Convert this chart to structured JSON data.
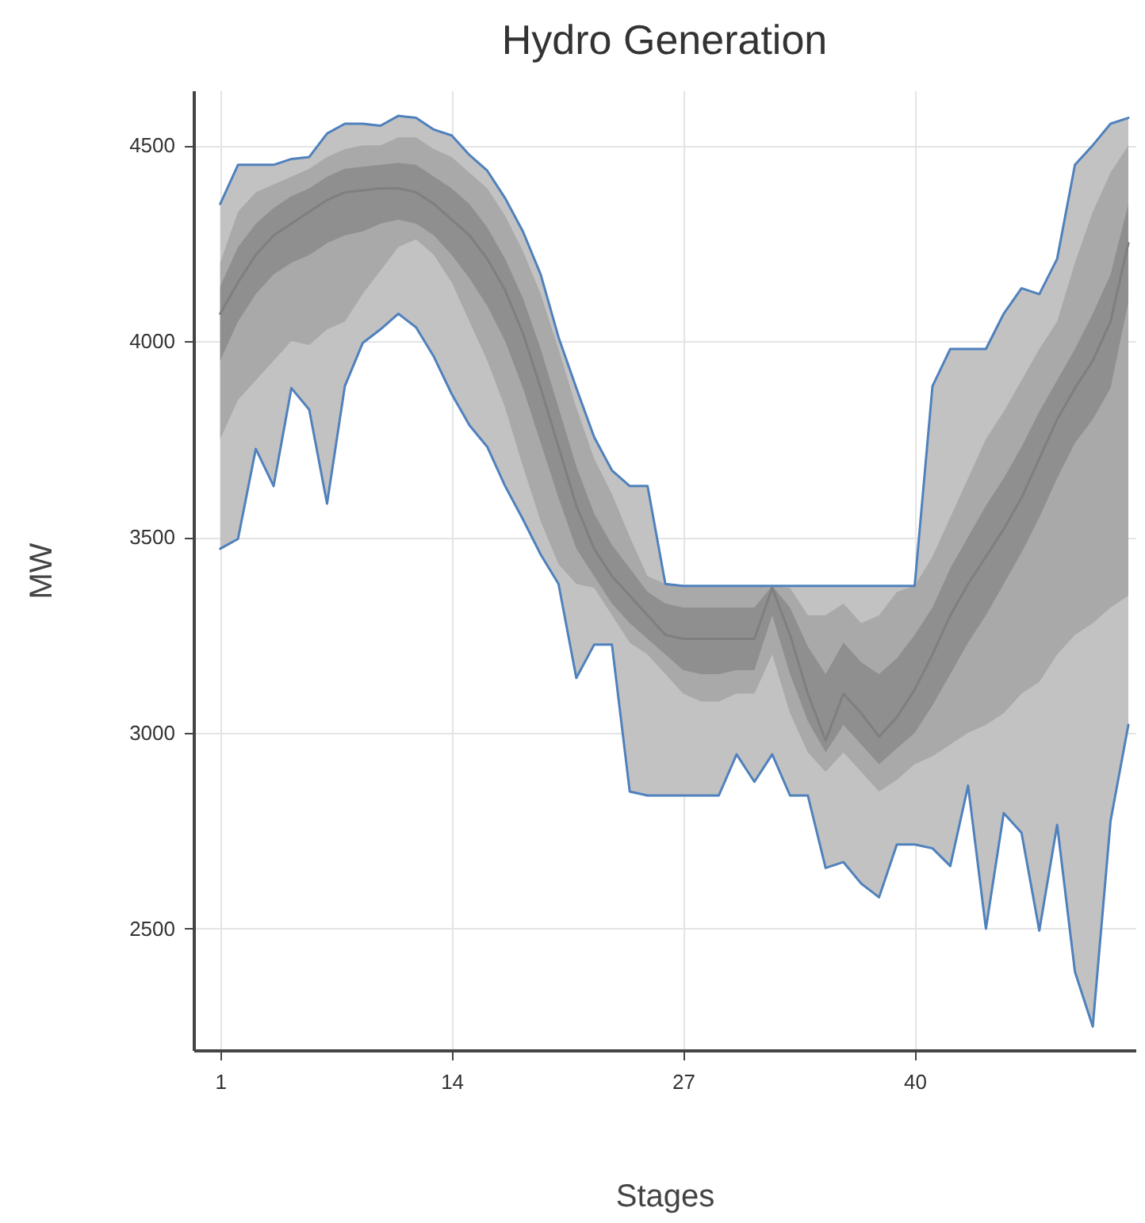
{
  "chart_data": {
    "type": "line",
    "title": "Hydro Generation",
    "xlabel": "Stages",
    "ylabel": "MW",
    "x": [
      1,
      2,
      3,
      4,
      5,
      6,
      7,
      8,
      9,
      10,
      11,
      12,
      13,
      14,
      15,
      16,
      17,
      18,
      19,
      20,
      21,
      22,
      23,
      24,
      25,
      26,
      27,
      28,
      29,
      30,
      31,
      32,
      33,
      34,
      35,
      36,
      37,
      38,
      39,
      40,
      41,
      42,
      43,
      44,
      45,
      46,
      47,
      48,
      49,
      50,
      51,
      52
    ],
    "xlim": [
      -0.5,
      52.4
    ],
    "xticks": [
      1,
      14,
      27,
      40
    ],
    "ylim": [
      2190,
      4640
    ],
    "yticks": [
      2500,
      3000,
      3500,
      4000,
      4500
    ],
    "grid": true,
    "series": [
      {
        "type": "area",
        "color": "#c2c2c2",
        "values": [
          null,
          null,
          null,
          null,
          null,
          null,
          null,
          null,
          null,
          null,
          null,
          null,
          null,
          null,
          null,
          null,
          null,
          null,
          null,
          null,
          null,
          null,
          null,
          null,
          null,
          null,
          null,
          null,
          null,
          null,
          null,
          null,
          null,
          null,
          null,
          null,
          null,
          null,
          null,
          null,
          null,
          null,
          null,
          null,
          null,
          null,
          null,
          null,
          null,
          null,
          null,
          null
        ],
        "lower": [
          3470,
          3495,
          3725,
          3630,
          3880,
          3825,
          3585,
          3885,
          3995,
          4030,
          4070,
          4035,
          3960,
          3865,
          3785,
          3730,
          3630,
          3545,
          3455,
          3380,
          3140,
          3225,
          3225,
          2850,
          2840,
          2840,
          2840,
          2840,
          2840,
          2945,
          2875,
          2945,
          2840,
          2840,
          2655,
          2670,
          2615,
          2580,
          2715,
          2715,
          2705,
          2660,
          2865,
          2500,
          2795,
          2745,
          2495,
          2765,
          2390,
          2250,
          2775,
          3020
        ],
        "upper": [
          4350,
          4450,
          4450,
          4450,
          4465,
          4470,
          4530,
          4555,
          4555,
          4550,
          4575,
          4570,
          4540,
          4525,
          4475,
          4435,
          4365,
          4280,
          4170,
          4010,
          3880,
          3755,
          3670,
          3630,
          3630,
          3380,
          3375,
          3375,
          3375,
          3375,
          3375,
          3375,
          3375,
          3375,
          3375,
          3375,
          3375,
          3375,
          3375,
          3375,
          3885,
          3980,
          3980,
          3980,
          4070,
          4135,
          4120,
          4210,
          4450,
          4500,
          4555,
          4570
        ]
      },
      {
        "type": "area",
        "color": "#a9a9a9",
        "values": [
          null,
          null,
          null,
          null,
          null,
          null,
          null,
          null,
          null,
          null,
          null,
          null,
          null,
          null,
          null,
          null,
          null,
          null,
          null,
          null,
          null,
          null,
          null,
          null,
          null,
          null,
          null,
          null,
          null,
          null,
          null,
          null,
          null,
          null,
          null,
          null,
          null,
          null,
          null,
          null,
          null,
          null,
          null,
          null,
          null,
          null,
          null,
          null,
          null,
          null,
          null,
          null
        ],
        "lower": [
          3750,
          3850,
          3900,
          3950,
          4000,
          3990,
          4030,
          4050,
          4120,
          4180,
          4240,
          4260,
          4220,
          4150,
          4050,
          3950,
          3830,
          3680,
          3540,
          3430,
          3380,
          3370,
          3300,
          3230,
          3200,
          3150,
          3100,
          3080,
          3080,
          3100,
          3100,
          3200,
          3050,
          2950,
          2900,
          2950,
          2900,
          2850,
          2880,
          2920,
          2940,
          2970,
          3000,
          3020,
          3050,
          3100,
          3130,
          3200,
          3250,
          3280,
          3320,
          3350
        ],
        "upper": [
          4200,
          4330,
          4380,
          4400,
          4420,
          4440,
          4470,
          4490,
          4500,
          4500,
          4520,
          4520,
          4490,
          4470,
          4430,
          4390,
          4320,
          4230,
          4120,
          3980,
          3830,
          3700,
          3610,
          3500,
          3400,
          3380,
          3375,
          3375,
          3375,
          3375,
          3375,
          3375,
          3370,
          3300,
          3300,
          3330,
          3280,
          3300,
          3360,
          3375,
          3450,
          3550,
          3650,
          3750,
          3820,
          3900,
          3980,
          4050,
          4200,
          4330,
          4430,
          4500
        ]
      },
      {
        "color": "#7f7f7f",
        "values": [
          4070,
          4150,
          4220,
          4270,
          4300,
          4330,
          4360,
          4380,
          4385,
          4390,
          4390,
          4380,
          4350,
          4310,
          4270,
          4210,
          4130,
          4020,
          3880,
          3730,
          3580,
          3470,
          3400,
          3350,
          3300,
          3250,
          3240,
          3240,
          3240,
          3240,
          3240,
          3370,
          3250,
          3100,
          2980,
          3100,
          3050,
          2990,
          3040,
          3110,
          3200,
          3300,
          3380,
          3450,
          3520,
          3600,
          3700,
          3800,
          3880,
          3950,
          4050,
          4250
        ],
        "lower": [
          3950,
          4050,
          4120,
          4170,
          4200,
          4220,
          4250,
          4270,
          4280,
          4300,
          4310,
          4300,
          4270,
          4220,
          4160,
          4090,
          4000,
          3880,
          3740,
          3600,
          3470,
          3400,
          3330,
          3280,
          3240,
          3200,
          3160,
          3150,
          3150,
          3160,
          3160,
          3300,
          3150,
          3030,
          2950,
          3020,
          2970,
          2920,
          2960,
          3000,
          3070,
          3150,
          3230,
          3300,
          3380,
          3460,
          3550,
          3650,
          3740,
          3800,
          3880,
          4100
        ],
        "upper": [
          4140,
          4240,
          4300,
          4340,
          4370,
          4390,
          4420,
          4440,
          4445,
          4450,
          4455,
          4450,
          4420,
          4390,
          4350,
          4290,
          4210,
          4110,
          3980,
          3830,
          3680,
          3560,
          3480,
          3420,
          3360,
          3330,
          3320,
          3320,
          3320,
          3320,
          3320,
          3375,
          3320,
          3220,
          3150,
          3230,
          3180,
          3150,
          3190,
          3250,
          3320,
          3420,
          3500,
          3580,
          3650,
          3730,
          3820,
          3900,
          3980,
          4070,
          4170,
          4350
        ]
      },
      {
        "color": "#4f81bd",
        "values": [
          4350,
          4450,
          4450,
          4450,
          4465,
          4470,
          4530,
          4555,
          4555,
          4550,
          4575,
          4570,
          4540,
          4525,
          4475,
          4435,
          4365,
          4280,
          4170,
          4010,
          3880,
          3755,
          3670,
          3630,
          3630,
          3380,
          3375,
          3375,
          3375,
          3375,
          3375,
          3375,
          3375,
          3375,
          3375,
          3375,
          3375,
          3375,
          3375,
          3375,
          3885,
          3980,
          3980,
          3980,
          4070,
          4135,
          4120,
          4210,
          4450,
          4500,
          4555,
          4570
        ]
      },
      {
        "color": "#4f81bd",
        "values": [
          3470,
          3495,
          3725,
          3630,
          3880,
          3825,
          3585,
          3885,
          3995,
          4030,
          4070,
          4035,
          3960,
          3865,
          3785,
          3730,
          3630,
          3545,
          3455,
          3380,
          3140,
          3225,
          3225,
          2850,
          2840,
          2840,
          2840,
          2840,
          2840,
          2945,
          2875,
          2945,
          2840,
          2840,
          2655,
          2670,
          2615,
          2580,
          2715,
          2715,
          2705,
          2660,
          2865,
          2500,
          2795,
          2745,
          2495,
          2765,
          2390,
          2250,
          2775,
          3020
        ]
      }
    ]
  }
}
